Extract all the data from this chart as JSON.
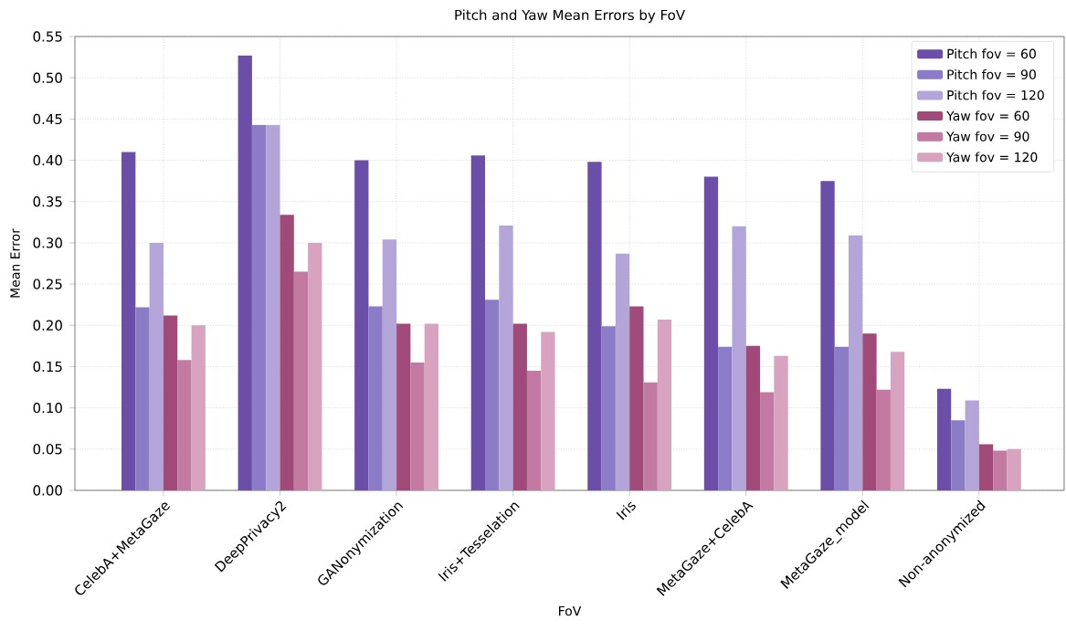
{
  "chart_data": {
    "type": "bar",
    "title": "Pitch and Yaw Mean Errors by FoV",
    "xlabel": "FoV",
    "ylabel": "Mean Error",
    "categories": [
      "CelebA+MetaGaze",
      "DeepPrivacy2",
      "GANonymization",
      "Iris+Tesselation",
      "Iris",
      "MetaGaze+CelebA",
      "MetaGaze_model",
      "Non-anonymized"
    ],
    "series": [
      {
        "name": "Pitch fov = 60",
        "color": "#6a4ea8",
        "values": [
          0.41,
          0.527,
          0.4,
          0.406,
          0.398,
          0.38,
          0.375,
          0.123
        ]
      },
      {
        "name": "Pitch fov = 90",
        "color": "#8c7cc8",
        "values": [
          0.222,
          0.443,
          0.223,
          0.231,
          0.199,
          0.174,
          0.174,
          0.085
        ]
      },
      {
        "name": "Pitch fov = 120",
        "color": "#b3a5d8",
        "values": [
          0.3,
          0.443,
          0.304,
          0.321,
          0.287,
          0.32,
          0.309,
          0.109
        ]
      },
      {
        "name": "Yaw fov = 60",
        "color": "#a04a7a",
        "values": [
          0.212,
          0.334,
          0.202,
          0.202,
          0.223,
          0.175,
          0.19,
          0.056
        ]
      },
      {
        "name": "Yaw fov = 90",
        "color": "#c27aa3",
        "values": [
          0.158,
          0.265,
          0.155,
          0.145,
          0.131,
          0.119,
          0.122,
          0.048
        ]
      },
      {
        "name": "Yaw fov = 120",
        "color": "#d8a3bf",
        "values": [
          0.2,
          0.3,
          0.202,
          0.192,
          0.207,
          0.163,
          0.168,
          0.05
        ]
      }
    ],
    "ylim": [
      0,
      0.55
    ],
    "yticks": [
      {
        "value": 0,
        "label": "0.00"
      },
      {
        "value": 0.05,
        "label": "0.05"
      },
      {
        "value": 0.1,
        "label": "0.10"
      },
      {
        "value": 0.15,
        "label": "0.15"
      },
      {
        "value": 0.2,
        "label": "0.20"
      },
      {
        "value": 0.25,
        "label": "0.25"
      },
      {
        "value": 0.3,
        "label": "0.30"
      },
      {
        "value": 0.35,
        "label": "0.35"
      },
      {
        "value": 0.4,
        "label": "0.40"
      },
      {
        "value": 0.45,
        "label": "0.45"
      },
      {
        "value": 0.5,
        "label": "0.50"
      },
      {
        "value": 0.55,
        "label": "0.55"
      }
    ],
    "grid": true,
    "legend": "top right"
  }
}
